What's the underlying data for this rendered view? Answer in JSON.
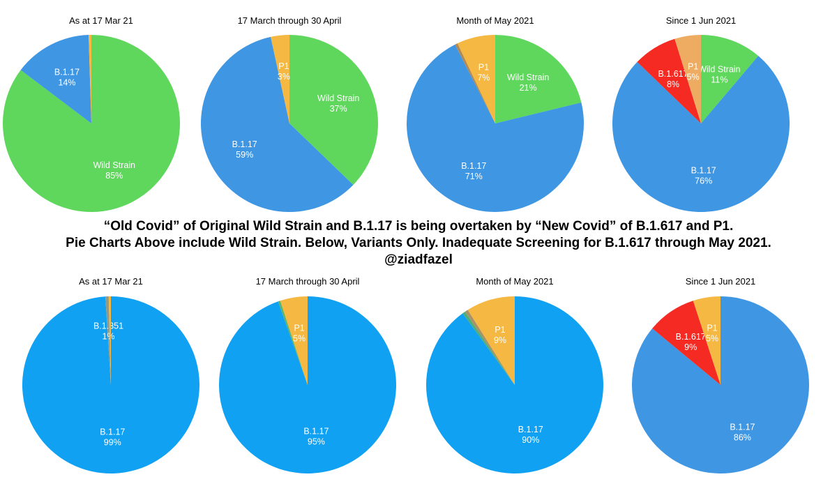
{
  "caption": {
    "line1": "“Old Covid” of Original Wild Strain and B.1.17 is being overtaken by “New Covid” of B.1.617 and P1.",
    "line2": "Pie Charts Above include Wild Strain. Below, Variants Only. Inadequate Screening for B.1.617 through May 2021.",
    "line3": "@ziadfazel"
  },
  "chart_data": [
    {
      "type": "pie",
      "title": "As at 17 Mar 21",
      "slices": [
        {
          "name": "Wild Strain",
          "value": 85.3,
          "color": "#5fd75c",
          "label": "Wild Strain",
          "pct": "85%"
        },
        {
          "name": "B.1.17",
          "value": 14.2,
          "color": "#3f96e3",
          "label": "B.1.17",
          "pct": "14%"
        },
        {
          "name": "Other",
          "value": 0.5,
          "color": "#f4b843",
          "label": "",
          "pct": ""
        }
      ]
    },
    {
      "type": "pie",
      "title": "17 March through 30 April",
      "slices": [
        {
          "name": "Wild Strain",
          "value": 37.2,
          "color": "#5fd75c",
          "label": "Wild Strain",
          "pct": "37%"
        },
        {
          "name": "B.1.17",
          "value": 59.4,
          "color": "#3f96e3",
          "label": "B.1.17",
          "pct": "59%"
        },
        {
          "name": "P1",
          "value": 3.4,
          "color": "#f4b843",
          "label": "P1",
          "pct": "3%"
        }
      ]
    },
    {
      "type": "pie",
      "title": "Month of May 2021",
      "slices": [
        {
          "name": "Wild Strain",
          "value": 21.2,
          "color": "#5fd75c",
          "label": "Wild Strain",
          "pct": "21%"
        },
        {
          "name": "B.1.17",
          "value": 71.3,
          "color": "#3f96e3",
          "label": "B.1.17",
          "pct": "71%"
        },
        {
          "name": "Other",
          "value": 0.5,
          "color": "#b08a56",
          "label": "",
          "pct": ""
        },
        {
          "name": "P1",
          "value": 7.0,
          "color": "#f4b843",
          "label": "P1",
          "pct": "7%"
        }
      ]
    },
    {
      "type": "pie",
      "title": "Since 1 Jun 2021",
      "slices": [
        {
          "name": "Wild Strain",
          "value": 11.2,
          "color": "#5fd75c",
          "label": "Wild Strain",
          "pct": "11%"
        },
        {
          "name": "B.1.17",
          "value": 76.0,
          "color": "#3f96e3",
          "label": "B.1.17",
          "pct": "76%"
        },
        {
          "name": "B.1.617",
          "value": 8.0,
          "color": "#f52a22",
          "label": "B.1.617",
          "pct": "8%"
        },
        {
          "name": "P1",
          "value": 4.8,
          "color": "#eeac62",
          "label": "P1",
          "pct": "5%"
        }
      ]
    },
    {
      "type": "pie",
      "title": "As at 17 Mar 21",
      "slices": [
        {
          "name": "B.1.17",
          "value": 99.0,
          "color": "#10a1f2",
          "label": "B.1.17",
          "pct": "99%"
        },
        {
          "name": "B.1.351",
          "value": 0.6,
          "color": "#8e9a8a",
          "label": "B.1.351",
          "pct": "1%"
        },
        {
          "name": "P1",
          "value": 0.4,
          "color": "#f4b843",
          "label": "",
          "pct": ""
        }
      ]
    },
    {
      "type": "pie",
      "title": "17 March through 30 April",
      "slices": [
        {
          "name": "B.1.17",
          "value": 94.6,
          "color": "#10a1f2",
          "label": "B.1.17",
          "pct": "95%"
        },
        {
          "name": "B.1.351",
          "value": 0.4,
          "color": "#5ab56c",
          "label": "",
          "pct": ""
        },
        {
          "name": "P1",
          "value": 5.0,
          "color": "#f4b843",
          "label": "P1",
          "pct": "5%"
        }
      ]
    },
    {
      "type": "pie",
      "title": "Month of May 2021",
      "slices": [
        {
          "name": "B.1.17",
          "value": 90.0,
          "color": "#10a1f2",
          "label": "B.1.17",
          "pct": "90%"
        },
        {
          "name": "B.1.351",
          "value": 0.5,
          "color": "#4fae77",
          "label": "",
          "pct": ""
        },
        {
          "name": "Other",
          "value": 0.6,
          "color": "#a99268",
          "label": "",
          "pct": ""
        },
        {
          "name": "P1",
          "value": 8.9,
          "color": "#f4b843",
          "label": "P1",
          "pct": "9%"
        }
      ]
    },
    {
      "type": "pie",
      "title": "Since 1 Jun 2021",
      "slices": [
        {
          "name": "B.1.17",
          "value": 86.0,
          "color": "#3f96e3",
          "label": "B.1.17",
          "pct": "86%"
        },
        {
          "name": "B.1.617",
          "value": 9.0,
          "color": "#f52a22",
          "label": "B.1.617",
          "pct": "9%"
        },
        {
          "name": "P1",
          "value": 5.0,
          "color": "#f4b843",
          "label": "P1",
          "pct": "5%"
        }
      ]
    }
  ]
}
